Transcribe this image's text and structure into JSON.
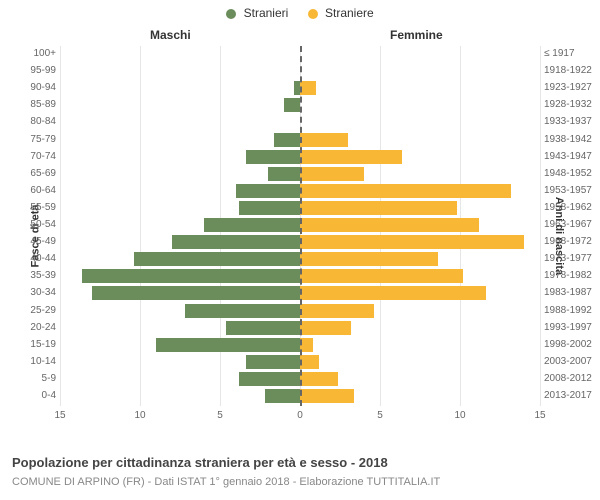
{
  "legend": {
    "male": {
      "label": "Stranieri",
      "color": "#6a8d5b"
    },
    "female": {
      "label": "Straniere",
      "color": "#f8b735"
    }
  },
  "columnTitles": {
    "left": "Maschi",
    "right": "Femmine"
  },
  "axisTitles": {
    "left": "Fasce di età",
    "right": "Anni di nascita"
  },
  "xAxis": {
    "max": 15,
    "ticks": [
      0,
      5,
      10,
      15
    ]
  },
  "gridColor": "#e6e6e6",
  "centerLineColor": "#666666",
  "background": "#ffffff",
  "barHeight": 14,
  "rowStep": 17.1,
  "rows": [
    {
      "age": "100+",
      "birth": "≤ 1917",
      "m": 0,
      "f": 0
    },
    {
      "age": "95-99",
      "birth": "1918-1922",
      "m": 0,
      "f": 0
    },
    {
      "age": "90-94",
      "birth": "1923-1927",
      "m": 0.4,
      "f": 1.0
    },
    {
      "age": "85-89",
      "birth": "1928-1932",
      "m": 1.0,
      "f": 0
    },
    {
      "age": "80-84",
      "birth": "1933-1937",
      "m": 0,
      "f": 0
    },
    {
      "age": "75-79",
      "birth": "1938-1942",
      "m": 1.6,
      "f": 3.0
    },
    {
      "age": "70-74",
      "birth": "1943-1947",
      "m": 3.4,
      "f": 6.4
    },
    {
      "age": "65-69",
      "birth": "1948-1952",
      "m": 2.0,
      "f": 4.0
    },
    {
      "age": "60-64",
      "birth": "1953-1957",
      "m": 4.0,
      "f": 13.2
    },
    {
      "age": "55-59",
      "birth": "1958-1962",
      "m": 3.8,
      "f": 9.8
    },
    {
      "age": "50-54",
      "birth": "1963-1967",
      "m": 6.0,
      "f": 11.2
    },
    {
      "age": "45-49",
      "birth": "1968-1972",
      "m": 8.0,
      "f": 14.0
    },
    {
      "age": "40-44",
      "birth": "1973-1977",
      "m": 10.4,
      "f": 8.6
    },
    {
      "age": "35-39",
      "birth": "1978-1982",
      "m": 13.6,
      "f": 10.2
    },
    {
      "age": "30-34",
      "birth": "1983-1987",
      "m": 13.0,
      "f": 11.6
    },
    {
      "age": "25-29",
      "birth": "1988-1992",
      "m": 7.2,
      "f": 4.6
    },
    {
      "age": "20-24",
      "birth": "1993-1997",
      "m": 4.6,
      "f": 3.2
    },
    {
      "age": "15-19",
      "birth": "1998-2002",
      "m": 9.0,
      "f": 0.8
    },
    {
      "age": "10-14",
      "birth": "2003-2007",
      "m": 3.4,
      "f": 1.2
    },
    {
      "age": "5-9",
      "birth": "2008-2012",
      "m": 3.8,
      "f": 2.4
    },
    {
      "age": "0-4",
      "birth": "2013-2017",
      "m": 2.2,
      "f": 3.4
    }
  ],
  "caption": {
    "title": "Popolazione per cittadinanza straniera per età e sesso - 2018",
    "sub": "COMUNE DI ARPINO (FR) - Dati ISTAT 1° gennaio 2018 - Elaborazione TUTTITALIA.IT"
  }
}
